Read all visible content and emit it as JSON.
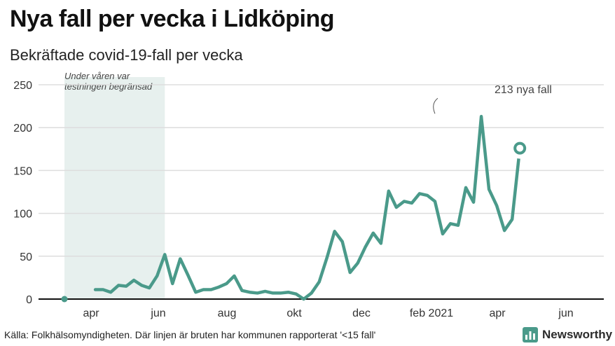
{
  "header": {
    "title": "Nya fall per vecka i Lidköping",
    "subtitle": "Bekräftade covid-19-fall per vecka"
  },
  "footer": {
    "source": "Källa: Folkhälsomyndigheten. Där linjen är bruten har kommunen rapporterat '<15 fall'"
  },
  "logo": {
    "text": "Newsworthy",
    "icon": "bar-chart-logo-icon",
    "color": "#4a9a8a"
  },
  "colors": {
    "line": "#4a9a8a",
    "shade": "#e7f0ee",
    "grid": "#dddddd",
    "axis": "#111111"
  },
  "chart_data": {
    "type": "line",
    "title": "Nya fall per vecka i Lidköping",
    "subtitle": "Bekräftade covid-19-fall per vecka",
    "ylim": [
      0,
      250
    ],
    "yticks": [
      0,
      50,
      100,
      150,
      200,
      250
    ],
    "xticks": [
      "apr",
      "jun",
      "aug",
      "okt",
      "dec",
      "feb 2021",
      "apr",
      "jun"
    ],
    "x_unit": "week",
    "shaded_region": {
      "from_week": 0,
      "to_week": 11,
      "label_lines": [
        "Under våren var",
        "testningen begränsad"
      ]
    },
    "annotation": {
      "week": 48,
      "value": 213,
      "text": "213 nya fall"
    },
    "series": [
      {
        "values": [
          0,
          null,
          null,
          null,
          11,
          11,
          8,
          16,
          15,
          22,
          16,
          13,
          27,
          52,
          18,
          47,
          28,
          8,
          11,
          11,
          14,
          18,
          27,
          10,
          8,
          7,
          9,
          7,
          7,
          8,
          6,
          0,
          7,
          20,
          48,
          79,
          67,
          31,
          42,
          61,
          77,
          65,
          126,
          107,
          114,
          112,
          123,
          121,
          114,
          76,
          88,
          86,
          130,
          113,
          213,
          128,
          109,
          80,
          93,
          176
        ],
        "last_point_marked": true
      }
    ]
  }
}
